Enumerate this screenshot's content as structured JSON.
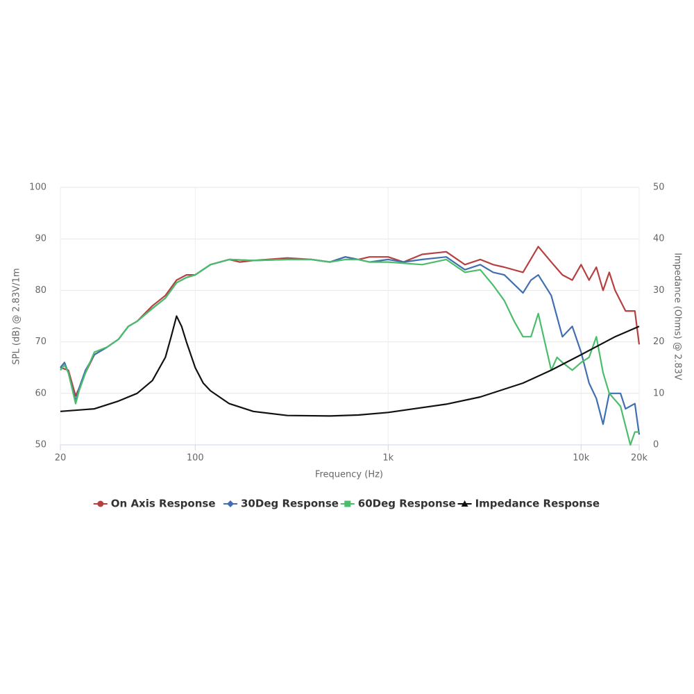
{
  "chart_data": {
    "type": "line",
    "x_title": "Frequency (Hz)",
    "y_title": "SPL (dB) @ 2.83V/1m",
    "y2_title": "Impedance (Ohms) @ 2.83V",
    "xlog": true,
    "xlim": [
      20,
      20000
    ],
    "xticks": [
      20,
      100,
      {
        "value": 1000,
        "label": "1k"
      },
      {
        "value": 10000,
        "label": "10k"
      },
      {
        "value": 20000,
        "label": "20k"
      }
    ],
    "ylim": [
      50,
      100
    ],
    "yticks": [
      50,
      60,
      70,
      80,
      90,
      100
    ],
    "y2lim": [
      0,
      50
    ],
    "y2ticks": [
      0,
      10,
      20,
      30,
      40,
      50
    ],
    "grid": true,
    "legend": "bottom",
    "series": [
      {
        "name": "On Axis Response",
        "color": "#b5403f",
        "marker": "circle",
        "x": [
          20,
          22,
          24,
          25,
          27,
          30,
          35,
          40,
          45,
          50,
          60,
          70,
          80,
          90,
          100,
          120,
          150,
          170,
          200,
          300,
          400,
          500,
          600,
          700,
          800,
          1000,
          1200,
          1500,
          2000,
          2500,
          3000,
          3500,
          4000,
          5000,
          6000,
          7000,
          8000,
          9000,
          10000,
          11000,
          12000,
          13000,
          14000,
          15000,
          17000,
          19000,
          20000
        ],
        "values": [
          65,
          64.5,
          59.5,
          61,
          64,
          67.5,
          69,
          70.5,
          73,
          74,
          77,
          79,
          82,
          83,
          83,
          85,
          86,
          85.5,
          85.8,
          86.3,
          86,
          85.5,
          86.5,
          86,
          86.5,
          86.5,
          85.5,
          87,
          87.5,
          85,
          86,
          85,
          84.5,
          83.5,
          88.5,
          85.5,
          83,
          82,
          85,
          82,
          84.5,
          80,
          83.5,
          80,
          76,
          76,
          69.5
        ]
      },
      {
        "name": "30Deg Response",
        "color": "#3f6fb0",
        "marker": "diamond",
        "x": [
          20,
          21,
          22,
          24,
          25,
          27,
          30,
          35,
          40,
          45,
          50,
          60,
          70,
          80,
          90,
          100,
          120,
          150,
          200,
          300,
          400,
          500,
          600,
          700,
          800,
          1000,
          1200,
          1500,
          2000,
          2500,
          3000,
          3500,
          4000,
          5000,
          5500,
          6000,
          7000,
          8000,
          9000,
          10000,
          11000,
          12000,
          13000,
          14000,
          16000,
          17000,
          19000,
          20000
        ],
        "values": [
          65,
          66,
          64,
          58.5,
          61,
          64.5,
          67.5,
          69,
          70.5,
          73,
          74,
          76.5,
          78.5,
          81.5,
          82.5,
          83,
          85,
          86,
          85.8,
          86,
          86,
          85.5,
          86.5,
          86,
          85.5,
          86,
          85.5,
          86,
          86.5,
          84,
          85,
          83.5,
          83,
          79.5,
          82,
          83,
          79,
          71,
          73,
          68,
          62,
          59,
          54,
          60,
          60,
          57,
          58,
          52
        ]
      },
      {
        "name": "60Deg Response",
        "color": "#4bbd6a",
        "marker": "square",
        "x": [
          20,
          21,
          22,
          24,
          25,
          27,
          30,
          35,
          40,
          45,
          50,
          60,
          70,
          80,
          90,
          100,
          120,
          150,
          200,
          300,
          400,
          500,
          600,
          700,
          800,
          1000,
          1500,
          2000,
          2500,
          3000,
          3500,
          4000,
          4500,
          5000,
          5500,
          6000,
          7000,
          7500,
          8000,
          9000,
          10000,
          11000,
          12000,
          13000,
          14000,
          16000,
          18000,
          19000,
          20000
        ],
        "values": [
          64.5,
          65.5,
          64,
          58,
          60.5,
          64,
          68,
          69,
          70.5,
          73,
          74,
          76.5,
          78.5,
          81.5,
          82.5,
          83,
          85,
          86,
          85.8,
          86,
          86,
          85.5,
          86,
          86,
          85.5,
          85.5,
          85,
          86,
          83.5,
          84,
          81,
          78,
          74,
          71,
          71,
          75.5,
          64.5,
          67,
          66,
          64.5,
          66,
          67,
          71,
          64,
          60,
          57.5,
          50,
          52.5,
          52.5
        ]
      },
      {
        "name": "Impedance Response",
        "color": "#111111",
        "marker": "triangle",
        "axis": "y2",
        "x": [
          20,
          30,
          40,
          50,
          60,
          70,
          75,
          80,
          85,
          90,
          100,
          110,
          120,
          150,
          200,
          300,
          500,
          700,
          1000,
          2000,
          3000,
          5000,
          7000,
          10000,
          15000,
          20000
        ],
        "values": [
          6.5,
          7,
          8.5,
          10,
          12.5,
          17,
          21,
          25,
          23,
          20,
          15,
          12,
          10.5,
          8,
          6.5,
          5.7,
          5.6,
          5.8,
          6.3,
          7.9,
          9.3,
          12,
          14.5,
          17.5,
          21,
          23
        ]
      }
    ]
  }
}
